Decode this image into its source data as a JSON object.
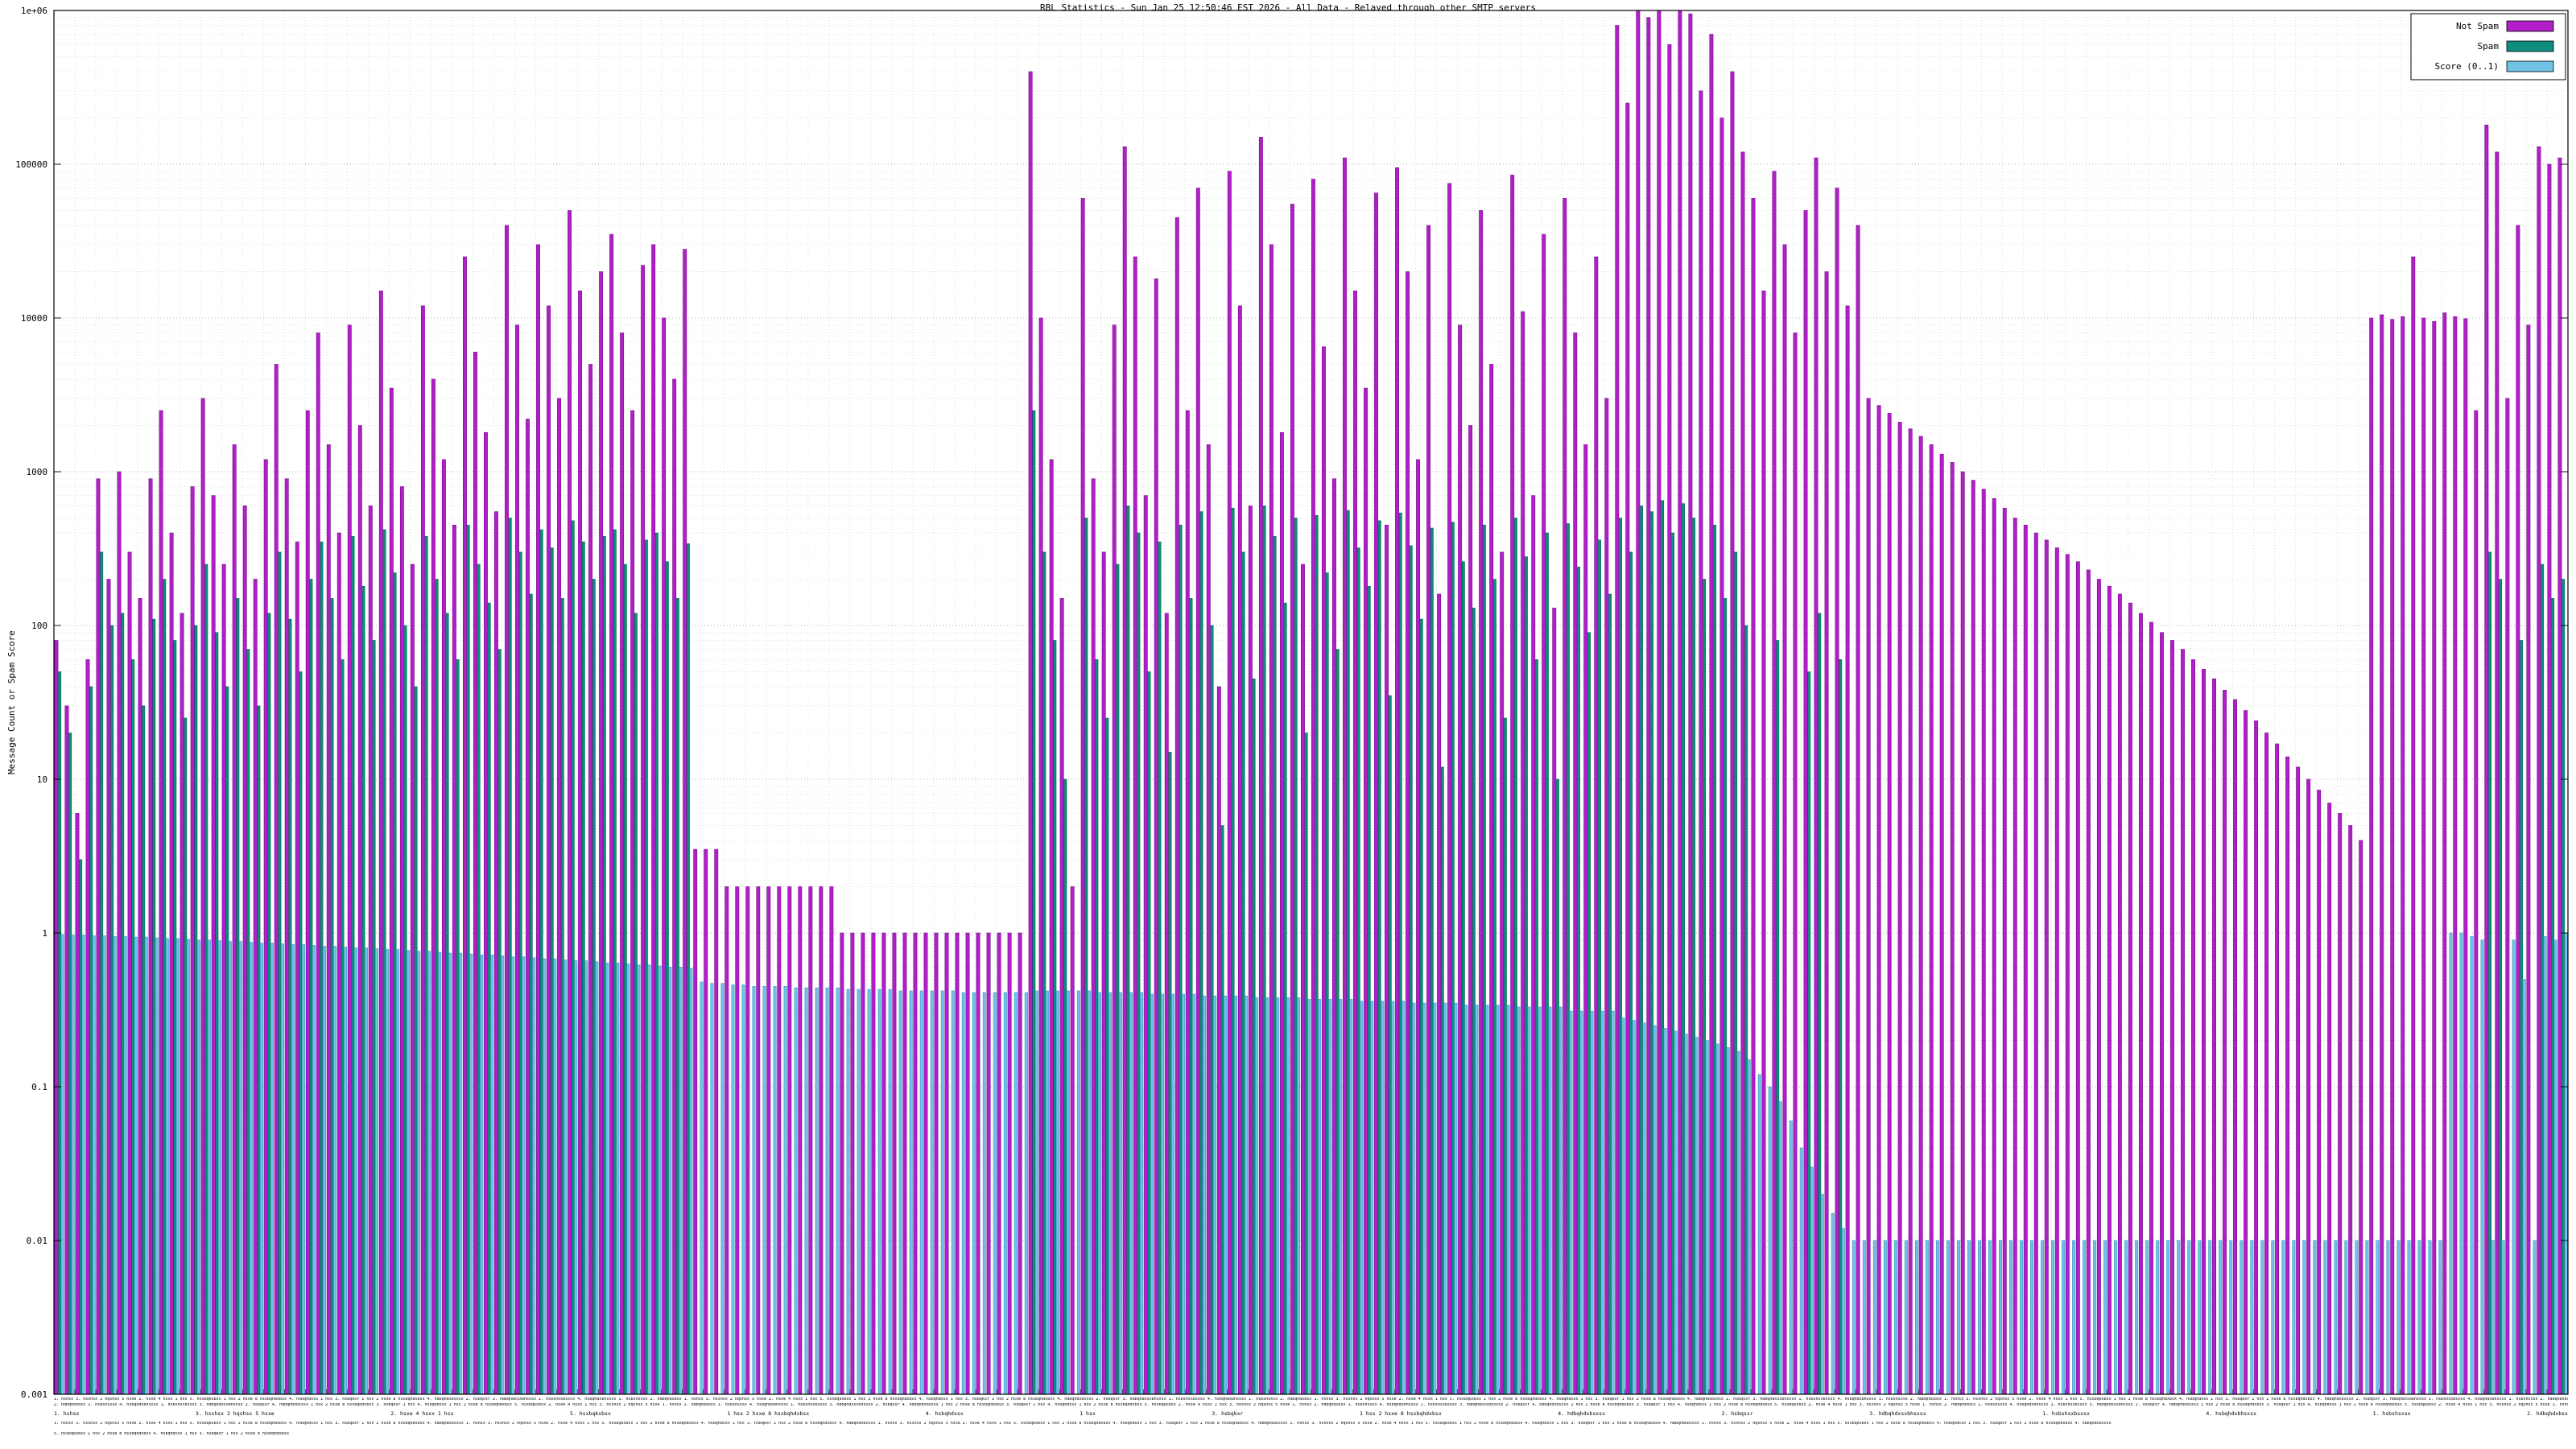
{
  "title": "RBL Statistics - Sun Jan 25 12:50:46 EST 2026 - All Data - Relayed through other SMTP servers",
  "y_axis": {
    "label": "Message Count or Spam Score",
    "ticks": [
      "1e+06",
      "100000",
      "10000",
      "1000",
      "100",
      "10",
      "1",
      "0.1",
      "0.01",
      "0.001"
    ]
  },
  "legend": {
    "items": [
      {
        "label": "Not Spam",
        "color": "#b21fc8"
      },
      {
        "label": "Spam",
        "color": "#0e8d7e"
      },
      {
        "label": "Score (0..1)",
        "color": "#6fc2e4"
      }
    ]
  },
  "chart_data": {
    "type": "bar",
    "title": "RBL Statistics - Sun Jan 25 12:50:46 EST 2026 - All Data - Relayed through other SMTP servers",
    "ylabel": "Message Count or Spam Score",
    "yscale": "log",
    "ylim": [
      0.001,
      1000000
    ],
    "grid": true,
    "legend_position": "top-right",
    "n_points": 240,
    "x_tick_labels_note": "one tiny label per relay host along the x-axis; illegible at source resolution",
    "x_group_labels": [
      "1. hshsx",
      "3. hsshsx 2 hqshsx 5 hsxe",
      "2. hsxe 4 hsxx 1 hsx",
      "5. hsxbqkxbsx",
      "1 hsx 2 hsxe 8 hsxbqhdxbsx",
      "4. hsbqhdxsx",
      "1 hsx",
      "3. hsbqkxr",
      "1 hsx 2 hsxe 8 hsxbqhdxbsx",
      "4. hdbqhdxbsxsx",
      "2. hsbqsxr",
      "3. hdbqhdxsxbhsxsx",
      "1. hsbshsxbsxsx",
      "4. hsbqhdxbhsxsx",
      "1. hsbshsxsx",
      "2. hdbqhdxbsx"
    ],
    "series": [
      {
        "name": "Not Spam",
        "color": "#b21fc8",
        "values": [
          80,
          30,
          6,
          60,
          900,
          200,
          1000,
          300,
          150,
          900,
          2500,
          400,
          120,
          800,
          3000,
          700,
          250,
          1500,
          600,
          200,
          1200,
          5000,
          900,
          350,
          2500,
          8000,
          1500,
          400,
          9000,
          2000,
          600,
          15000,
          3500,
          800,
          250,
          12000,
          4000,
          1200,
          450,
          25000,
          6000,
          1800,
          550,
          40000,
          9000,
          2200,
          30000,
          12000,
          3000,
          50000,
          15000,
          5000,
          20000,
          35000,
          8000,
          2500,
          22000,
          30000,
          10000,
          4000,
          28000,
          3.5,
          3.5,
          3.5,
          2,
          2,
          2,
          2,
          2,
          2,
          2,
          2,
          2,
          2,
          2,
          1,
          1,
          1,
          1,
          1,
          1,
          1,
          1,
          1,
          1,
          1,
          1,
          1,
          1,
          1,
          1,
          1,
          1,
          400000,
          10000,
          1200,
          150,
          2,
          60000,
          900,
          300,
          9000,
          130000,
          25000,
          700,
          18000,
          120,
          45000,
          2500,
          70000,
          1500,
          40,
          90000,
          12000,
          600,
          150000,
          30000,
          1800,
          55000,
          250,
          80000,
          6500,
          900,
          110000,
          15000,
          3500,
          65000,
          450,
          95000,
          20000,
          1200,
          40000,
          160,
          75000,
          9000,
          2000,
          50000,
          5000,
          300,
          85000,
          11000,
          700,
          35000,
          130,
          60000,
          8000,
          1500,
          25000,
          3000,
          800000,
          250000,
          1000000,
          900000,
          1300000,
          600000,
          1200000,
          950000,
          300000,
          700000,
          200000,
          400000,
          120000,
          60000,
          15000,
          90000,
          30000,
          8000,
          50000,
          110000,
          20000,
          70000,
          12000,
          40000,
          3000,
          2700,
          2400,
          2100,
          1900,
          1700,
          1500,
          1300,
          1150,
          1000,
          880,
          770,
          670,
          580,
          500,
          450,
          400,
          360,
          320,
          290,
          260,
          230,
          200,
          180,
          160,
          140,
          120,
          105,
          90,
          80,
          70,
          60,
          52,
          45,
          38,
          33,
          28,
          24,
          20,
          17,
          14,
          12,
          10,
          8.5,
          7,
          6,
          5,
          4,
          10000,
          10500,
          9800,
          10200,
          25000,
          10000,
          9500,
          10800,
          10200,
          9900,
          2500,
          180000,
          120000,
          3000,
          40000,
          9000,
          130000,
          100000,
          110000
        ]
      },
      {
        "name": "Spam",
        "color": "#0e8d7e",
        "values": [
          50,
          20,
          3,
          40,
          300,
          100,
          120,
          60,
          30,
          110,
          200,
          80,
          25,
          100,
          250,
          90,
          40,
          150,
          70,
          30,
          120,
          300,
          110,
          50,
          200,
          350,
          150,
          60,
          380,
          180,
          80,
          420,
          220,
          100,
          40,
          380,
          200,
          120,
          60,
          450,
          250,
          140,
          70,
          500,
          300,
          160,
          420,
          320,
          150,
          480,
          350,
          200,
          380,
          420,
          250,
          120,
          360,
          400,
          260,
          150,
          340,
          0,
          0,
          0,
          0,
          0,
          0,
          0,
          0,
          0,
          0,
          0,
          0,
          0,
          0,
          0,
          0,
          0,
          0,
          0,
          0,
          0,
          0,
          0,
          0,
          0,
          0,
          0,
          0,
          0,
          0,
          0,
          0,
          2500,
          300,
          80,
          10,
          0,
          500,
          60,
          25,
          250,
          600,
          400,
          50,
          350,
          15,
          450,
          150,
          550,
          100,
          5,
          580,
          300,
          45,
          600,
          380,
          140,
          500,
          20,
          520,
          220,
          70,
          560,
          320,
          180,
          480,
          35,
          540,
          330,
          110,
          430,
          12,
          470,
          260,
          130,
          450,
          200,
          25,
          500,
          280,
          60,
          400,
          10,
          460,
          240,
          90,
          360,
          160,
          500,
          300,
          600,
          550,
          650,
          400,
          620,
          500,
          200,
          450,
          150,
          300,
          100,
          0,
          0,
          80,
          0,
          0,
          50,
          120,
          0,
          60,
          0,
          0,
          0,
          0,
          0,
          0,
          0,
          0,
          0,
          0,
          0,
          0,
          0,
          0,
          0,
          0,
          0,
          0,
          0,
          0,
          0,
          0,
          0,
          0,
          0,
          0,
          0,
          0,
          0,
          0,
          0,
          0,
          0,
          0,
          0,
          0,
          0,
          0,
          0,
          0,
          0,
          0,
          0,
          0,
          0,
          0,
          0,
          0,
          0,
          0,
          0,
          0,
          0,
          0,
          0,
          0,
          0,
          0,
          0,
          0,
          0,
          300,
          200,
          0,
          80,
          0,
          250,
          150,
          200
        ]
      },
      {
        "name": "Score (0..1)",
        "color": "#6fc2e4",
        "values": [
          0.98,
          0.97,
          0.97,
          0.96,
          0.96,
          0.95,
          0.95,
          0.94,
          0.94,
          0.93,
          0.92,
          0.92,
          0.91,
          0.9,
          0.9,
          0.89,
          0.88,
          0.88,
          0.87,
          0.86,
          0.86,
          0.85,
          0.84,
          0.84,
          0.83,
          0.82,
          0.82,
          0.81,
          0.8,
          0.8,
          0.79,
          0.78,
          0.78,
          0.77,
          0.76,
          0.76,
          0.75,
          0.74,
          0.74,
          0.73,
          0.72,
          0.72,
          0.71,
          0.7,
          0.7,
          0.69,
          0.68,
          0.68,
          0.67,
          0.66,
          0.66,
          0.65,
          0.64,
          0.64,
          0.63,
          0.62,
          0.62,
          0.61,
          0.6,
          0.6,
          0.59,
          0.48,
          0.47,
          0.47,
          0.46,
          0.46,
          0.45,
          0.45,
          0.45,
          0.45,
          0.44,
          0.44,
          0.44,
          0.44,
          0.44,
          0.43,
          0.43,
          0.43,
          0.43,
          0.43,
          0.42,
          0.42,
          0.42,
          0.42,
          0.42,
          0.42,
          0.41,
          0.41,
          0.41,
          0.41,
          0.41,
          0.41,
          0.41,
          0.42,
          0.42,
          0.42,
          0.42,
          0.42,
          0.42,
          0.41,
          0.41,
          0.41,
          0.41,
          0.41,
          0.4,
          0.4,
          0.4,
          0.4,
          0.4,
          0.39,
          0.39,
          0.39,
          0.39,
          0.39,
          0.38,
          0.38,
          0.38,
          0.38,
          0.38,
          0.37,
          0.37,
          0.37,
          0.37,
          0.37,
          0.36,
          0.36,
          0.36,
          0.36,
          0.36,
          0.35,
          0.35,
          0.35,
          0.35,
          0.35,
          0.34,
          0.34,
          0.34,
          0.34,
          0.34,
          0.33,
          0.33,
          0.33,
          0.33,
          0.33,
          0.31,
          0.31,
          0.31,
          0.31,
          0.31,
          0.28,
          0.27,
          0.26,
          0.25,
          0.24,
          0.23,
          0.22,
          0.21,
          0.2,
          0.19,
          0.18,
          0.17,
          0.15,
          0.12,
          0.1,
          0.08,
          0.06,
          0.04,
          0.03,
          0.02,
          0.015,
          0.012,
          0.01,
          0.01,
          0.01,
          0.01,
          0.01,
          0.01,
          0.01,
          0.01,
          0.01,
          0.01,
          0.01,
          0.01,
          0.01,
          0.01,
          0.01,
          0.01,
          0.01,
          0.01,
          0.01,
          0.01,
          0.01,
          0.01,
          0.01,
          0.01,
          0.01,
          0.01,
          0.01,
          0.01,
          0.01,
          0.01,
          0.01,
          0.01,
          0.01,
          0.01,
          0.01,
          0.01,
          0.01,
          0.01,
          0.01,
          0.01,
          0.01,
          0.01,
          0.01,
          0.01,
          0.01,
          0.01,
          0.01,
          0.01,
          0.01,
          0.01,
          0.01,
          0.01,
          0.01,
          0.01,
          0.01,
          0.01,
          0.01,
          1.0,
          1.0,
          0.95,
          0.9,
          0.01,
          0.01,
          0.9,
          0.5,
          0.01,
          0.95,
          0.9,
          1.0
        ]
      }
    ]
  }
}
